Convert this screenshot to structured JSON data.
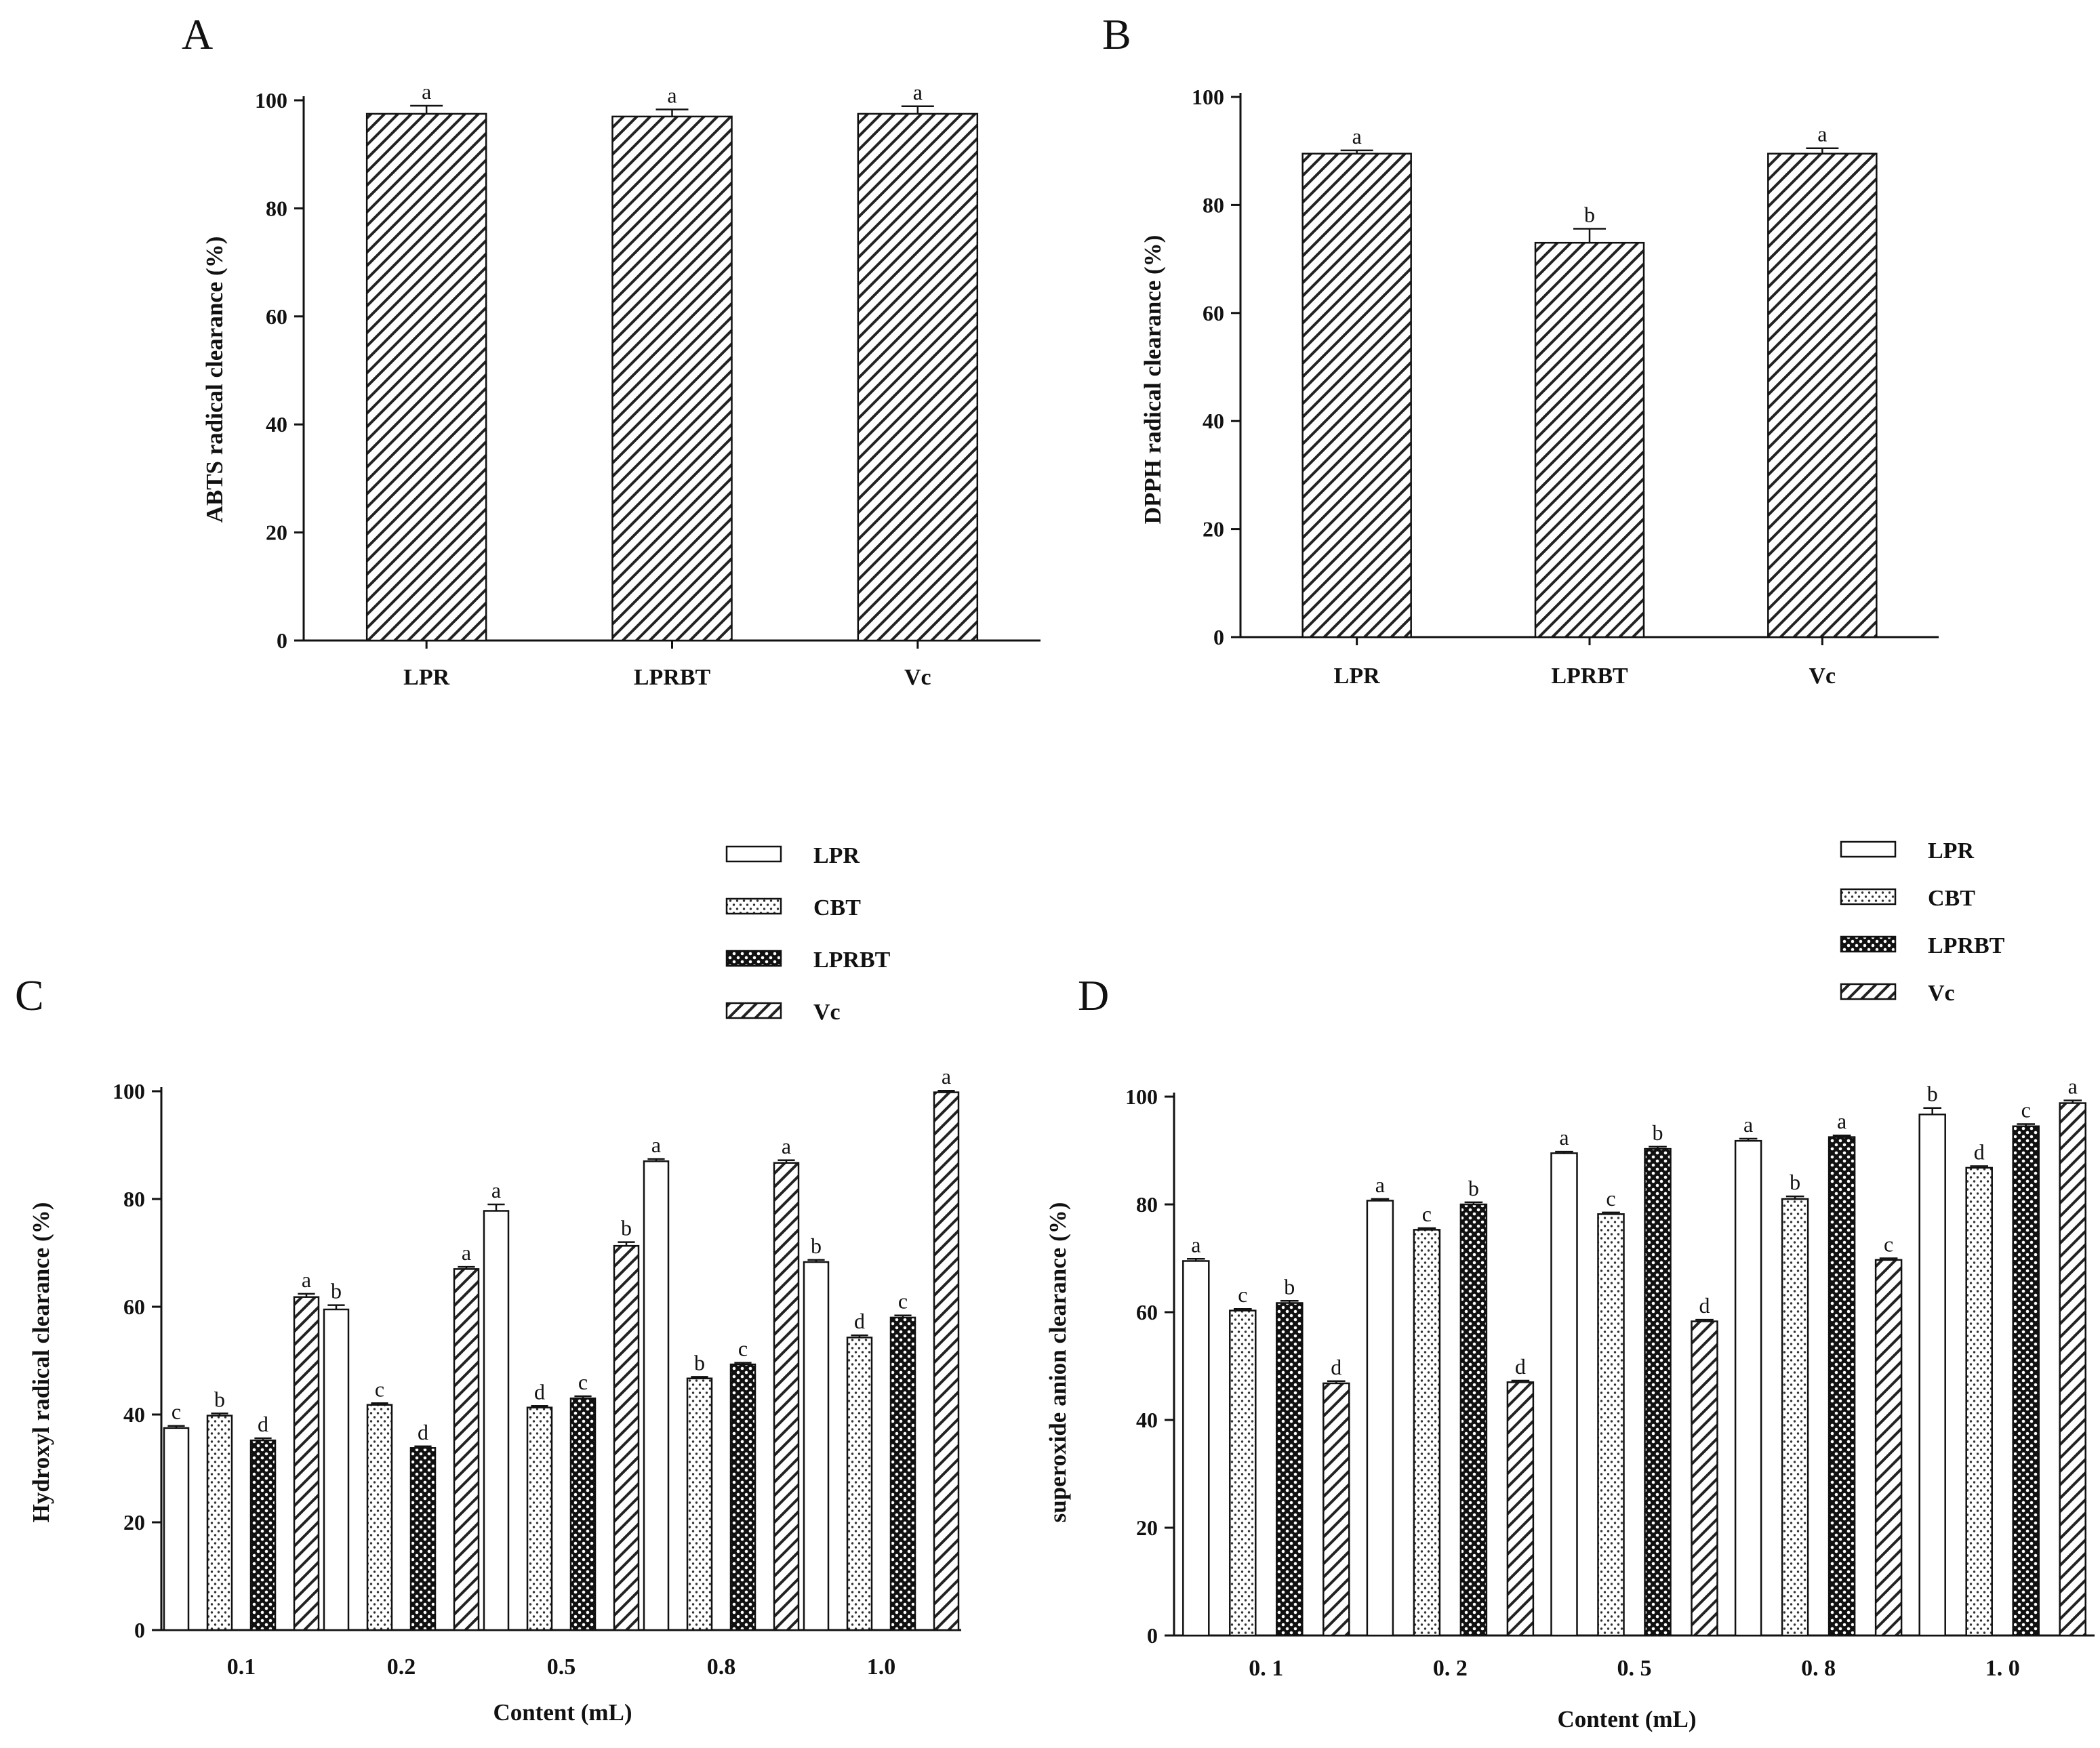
{
  "figure": {
    "panels": [
      "A",
      "B",
      "C",
      "D"
    ]
  },
  "chart_data": [
    {
      "panel": "A",
      "type": "bar",
      "categories": [
        "LPR",
        "LPRBT",
        "Vc"
      ],
      "series": [
        {
          "name": "ABTS",
          "pattern": "hatch",
          "values": [
            97.5,
            97.0,
            97.5
          ],
          "errors": [
            1.5,
            1.3,
            1.4
          ],
          "sig": [
            "a",
            "a",
            "a"
          ]
        }
      ],
      "ylabel": "ABTS radical clearance (%)",
      "xlabel": "",
      "ylim": [
        0,
        100
      ],
      "yticks": [
        0,
        20,
        40,
        60,
        80,
        100
      ],
      "legend": false
    },
    {
      "panel": "B",
      "type": "bar",
      "categories": [
        "LPR",
        "LPRBT",
        "Vc"
      ],
      "series": [
        {
          "name": "DPPH",
          "pattern": "hatch",
          "values": [
            89.5,
            73.0,
            89.5
          ],
          "errors": [
            0.6,
            2.6,
            1.0
          ],
          "sig": [
            "a",
            "b",
            "a"
          ]
        }
      ],
      "ylabel": "DPPH radical clearance (%)",
      "xlabel": "",
      "ylim": [
        0,
        100
      ],
      "yticks": [
        0,
        20,
        40,
        60,
        80,
        100
      ],
      "legend": false
    },
    {
      "panel": "C",
      "type": "bar",
      "categories": [
        "0.1",
        "0.2",
        "0.5",
        "0.8",
        "1.0"
      ],
      "series": [
        {
          "name": "LPR",
          "pattern": "open",
          "values": [
            37.5,
            59.5,
            77.8,
            87.0,
            68.3
          ],
          "errors": [
            0.4,
            0.8,
            1.2,
            0.4,
            0.4
          ],
          "sig": [
            "c",
            "b",
            "a",
            "a",
            "b"
          ]
        },
        {
          "name": "CBT",
          "pattern": "dots",
          "values": [
            39.8,
            41.8,
            41.3,
            46.7,
            54.3
          ],
          "errors": [
            0.4,
            0.3,
            0.3,
            0.3,
            0.4
          ],
          "sig": [
            "b",
            "c",
            "d",
            "b",
            "d"
          ]
        },
        {
          "name": "LPRBT",
          "pattern": "cross",
          "values": [
            35.2,
            33.8,
            43.0,
            49.3,
            58.0
          ],
          "errors": [
            0.4,
            0.3,
            0.4,
            0.3,
            0.4
          ],
          "sig": [
            "d",
            "d",
            "c",
            "c",
            "c"
          ]
        },
        {
          "name": "Vc",
          "pattern": "hatch",
          "values": [
            61.8,
            67.0,
            71.3,
            86.7,
            99.8
          ],
          "errors": [
            0.6,
            0.4,
            0.7,
            0.5,
            0.3
          ],
          "sig": [
            "a",
            "a",
            "b",
            "a",
            "a"
          ]
        }
      ],
      "ylabel": "Hydroxyl radical clearance (%)",
      "xlabel": "Content (mL)",
      "ylim": [
        0,
        100
      ],
      "yticks": [
        0,
        20,
        40,
        60,
        80,
        100
      ],
      "legend": true,
      "legend_position": "top-center"
    },
    {
      "panel": "D",
      "type": "bar",
      "categories": [
        "0. 1",
        "0. 2",
        "0. 5",
        "0. 8",
        "1. 0"
      ],
      "series": [
        {
          "name": "LPR",
          "pattern": "open",
          "values": [
            69.5,
            80.7,
            89.5,
            91.8,
            96.7
          ],
          "errors": [
            0.4,
            0.3,
            0.3,
            0.4,
            1.2
          ],
          "sig": [
            "a",
            "a",
            "a",
            "a",
            "b"
          ]
        },
        {
          "name": "CBT",
          "pattern": "dots",
          "values": [
            60.3,
            75.3,
            78.2,
            81.0,
            86.8
          ],
          "errors": [
            0.3,
            0.3,
            0.3,
            0.5,
            0.3
          ],
          "sig": [
            "c",
            "c",
            "c",
            "b",
            "d"
          ]
        },
        {
          "name": "LPRBT",
          "pattern": "cross",
          "values": [
            61.7,
            80.0,
            90.3,
            92.5,
            94.5
          ],
          "errors": [
            0.4,
            0.4,
            0.4,
            0.3,
            0.4
          ],
          "sig": [
            "b",
            "b",
            "b",
            "a",
            "c"
          ]
        },
        {
          "name": "Vc",
          "pattern": "hatch",
          "values": [
            46.8,
            47.0,
            58.3,
            69.7,
            98.8
          ],
          "errors": [
            0.4,
            0.3,
            0.3,
            0.3,
            0.5
          ],
          "sig": [
            "d",
            "d",
            "d",
            "c",
            "a"
          ]
        }
      ],
      "ylabel": "superoxide anion clearance (%)",
      "xlabel": "Content (mL)",
      "ylim": [
        0,
        100
      ],
      "yticks": [
        0,
        20,
        40,
        60,
        80,
        100
      ],
      "legend": true,
      "legend_position": "top-center"
    }
  ]
}
